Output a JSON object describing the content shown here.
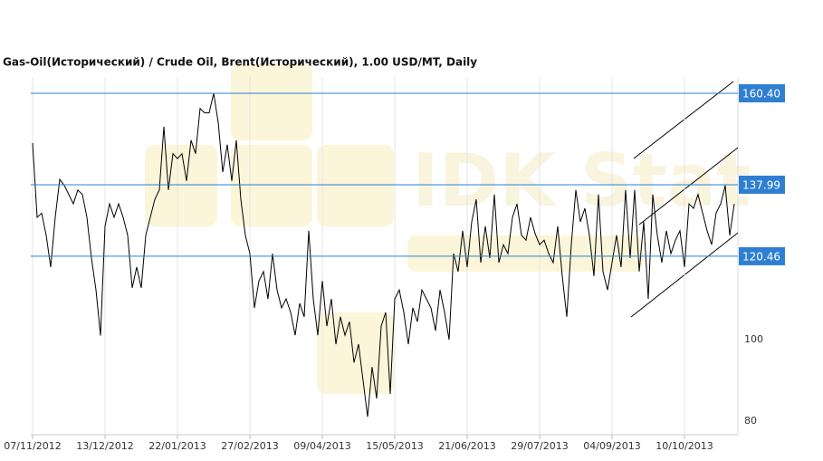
{
  "chart_data": {
    "type": "line",
    "title": "Gas-Oil(Исторический) / Crude Oil, Brent(Исторический), 1.00 USD/MT, Daily",
    "watermark": "IDK Stat",
    "color": "#000000",
    "categories": [
      "07/11/2012",
      null,
      null,
      null,
      null,
      null,
      null,
      null,
      null,
      null,
      null,
      null,
      null,
      null,
      null,
      null,
      "13/12/2012",
      null,
      null,
      null,
      null,
      null,
      null,
      null,
      null,
      null,
      null,
      null,
      null,
      null,
      null,
      null,
      "22/01/2013",
      null,
      null,
      null,
      null,
      null,
      null,
      null,
      null,
      null,
      null,
      null,
      null,
      null,
      null,
      null,
      "27/02/2013",
      null,
      null,
      null,
      null,
      null,
      null,
      null,
      null,
      null,
      null,
      null,
      null,
      null,
      null,
      null,
      "09/04/2013",
      null,
      null,
      null,
      null,
      null,
      null,
      null,
      null,
      null,
      null,
      null,
      null,
      null,
      null,
      null,
      "15/05/2013",
      null,
      null,
      null,
      null,
      null,
      null,
      null,
      null,
      null,
      null,
      null,
      null,
      null,
      null,
      null,
      "21/06/2013",
      null,
      null,
      null,
      null,
      null,
      null,
      null,
      null,
      null,
      null,
      null,
      null,
      null,
      null,
      null,
      "29/07/2013",
      null,
      null,
      null,
      null,
      null,
      null,
      null,
      null,
      null,
      null,
      null,
      null,
      null,
      null,
      null,
      "04/09/2013",
      null,
      null,
      null,
      null,
      null,
      null,
      null,
      null,
      null,
      null,
      null,
      null,
      null,
      null,
      null,
      "10/10/2013",
      null,
      null,
      null,
      null,
      null,
      null,
      null,
      null,
      null,
      null,
      null
    ],
    "values": [
      148.2,
      130,
      131,
      125.6,
      117.8,
      130,
      139.3,
      137.8,
      135.6,
      133.3,
      136.7,
      135.6,
      130,
      120,
      112.2,
      101,
      127.8,
      133.3,
      130,
      133.3,
      130,
      125.6,
      112.7,
      117.8,
      112.7,
      125.6,
      130,
      134.4,
      136.7,
      152.2,
      136.7,
      145.6,
      144.4,
      145.6,
      138.9,
      148.9,
      145.6,
      156.7,
      155.6,
      155.6,
      160.4,
      153.3,
      141.1,
      147.8,
      138.9,
      148.9,
      134.4,
      125.6,
      121.1,
      107.8,
      114.4,
      116.7,
      110,
      121.1,
      112.2,
      107.8,
      110,
      106.7,
      101.1,
      108.9,
      105.6,
      126.7,
      110,
      101.1,
      114.4,
      103.3,
      110,
      98.9,
      105.6,
      101.1,
      104.4,
      94.4,
      98.9,
      90,
      81.1,
      93.3,
      85.6,
      103.3,
      106.7,
      86.7,
      110,
      112.2,
      106.7,
      98.9,
      107.8,
      104.4,
      112.2,
      110,
      107.8,
      102.2,
      112.2,
      106.7,
      100,
      121.1,
      116.7,
      126.7,
      117.8,
      128.9,
      134.4,
      118.9,
      127.8,
      120,
      135.6,
      118.9,
      123.3,
      121.1,
      130,
      133.3,
      125.6,
      124.4,
      130,
      126,
      123.3,
      124.4,
      121.1,
      118.9,
      127.8,
      115.6,
      105.6,
      123.3,
      136.7,
      128.9,
      132.2,
      125.6,
      115.6,
      135.6,
      116.7,
      112.2,
      118.9,
      125.6,
      117.8,
      136.7,
      120,
      136.7,
      116.7,
      128.9,
      110,
      135.6,
      125.6,
      118.9,
      126.7,
      121.1,
      124.4,
      126.7,
      117.8,
      133.3,
      132.2,
      135.6,
      131.1,
      126.7,
      123.3,
      131.1,
      133.3,
      137.8,
      125.6,
      133.3
    ],
    "levels": [
      {
        "value": 160.4,
        "label": "160.40"
      },
      {
        "value": 137.99,
        "label": "137.99"
      },
      {
        "value": 120.46,
        "label": "120.46"
      }
    ],
    "level_color": "#2e7fd1",
    "ylim": [
      76.7,
      164.4
    ],
    "yticks": [
      80,
      100
    ],
    "grid": true
  }
}
